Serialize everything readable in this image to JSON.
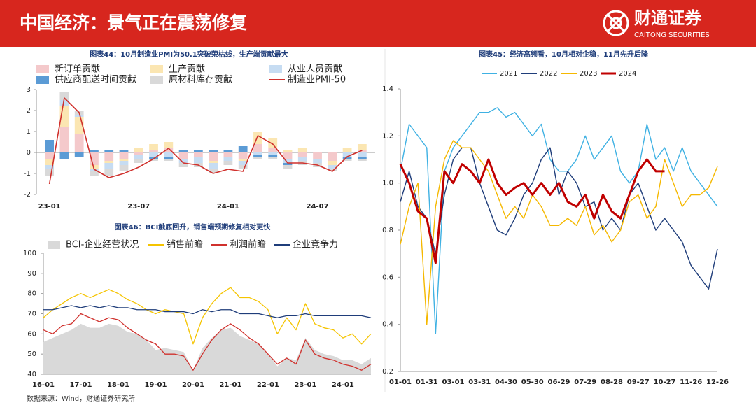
{
  "header": {
    "title": "中国经济：景气正在震荡修复",
    "logo_cn": "财通证券",
    "logo_en": "CAITONG SECURITIES"
  },
  "chart_data": [
    {
      "type": "bar",
      "stacked": true,
      "title": "图表44：10月制造业PMI为50.1突破荣枯线，生产端贡献最大",
      "categories": [
        "23-01",
        null,
        null,
        null,
        null,
        null,
        "23-07",
        null,
        null,
        null,
        null,
        null,
        "24-01",
        null,
        null,
        null,
        null,
        null,
        "24-07",
        null,
        null,
        null
      ],
      "ylim": [
        -2,
        3
      ],
      "yticks": [
        -2,
        -1,
        0,
        1,
        2,
        3
      ],
      "series": [
        {
          "name": "新订单贡献",
          "type": "bar",
          "color": "#f4c9cb",
          "values": [
            -0.3,
            1.2,
            0.9,
            -0.6,
            -0.4,
            -0.3,
            -0.1,
            0.1,
            0.2,
            -0.3,
            -0.2,
            -0.4,
            -0.2,
            -0.3,
            0.4,
            0.2,
            -0.3,
            -0.2,
            -0.3,
            -0.4,
            0.0,
            0.1
          ]
        },
        {
          "name": "生产贡献",
          "type": "bar",
          "color": "#fbe6b2",
          "values": [
            -0.3,
            1.0,
            0.8,
            -0.2,
            -0.1,
            -0.1,
            0.2,
            0.3,
            0.3,
            0.0,
            0.0,
            -0.1,
            0.0,
            -0.1,
            0.6,
            0.5,
            0.1,
            0.2,
            0.0,
            -0.2,
            0.2,
            0.3
          ]
        },
        {
          "name": "从业人员贡献",
          "type": "bar",
          "color": "#c6dcf2",
          "values": [
            -0.2,
            0.3,
            0.1,
            -0.1,
            -0.3,
            -0.2,
            -0.2,
            -0.2,
            -0.2,
            -0.2,
            -0.3,
            -0.3,
            -0.2,
            -0.2,
            -0.1,
            -0.1,
            -0.2,
            -0.2,
            -0.2,
            -0.2,
            -0.2,
            -0.2
          ]
        },
        {
          "name": "供应商配送时间贡献",
          "type": "bar",
          "color": "#5b9bd5",
          "values": [
            0.6,
            -0.3,
            -0.2,
            0.1,
            0.1,
            0.1,
            0.0,
            -0.1,
            -0.1,
            0.1,
            0.1,
            0.1,
            0.1,
            0.3,
            -0.1,
            -0.1,
            -0.1,
            0.0,
            0.0,
            0.0,
            -0.1,
            -0.1
          ]
        },
        {
          "name": "原材料库存贡献",
          "type": "bar",
          "color": "#d9d9d9",
          "values": [
            -0.3,
            0.4,
            0.2,
            -0.2,
            -0.3,
            -0.3,
            -0.2,
            -0.1,
            -0.1,
            -0.2,
            -0.2,
            -0.2,
            -0.2,
            -0.2,
            -0.1,
            -0.1,
            -0.2,
            -0.2,
            -0.2,
            -0.1,
            -0.1,
            -0.1
          ]
        },
        {
          "name": "制造业PMI-50",
          "type": "line",
          "color": "#d0312d",
          "values": [
            -1.5,
            2.6,
            1.9,
            -0.8,
            -1.2,
            -1.0,
            -0.7,
            -0.3,
            0.2,
            -0.5,
            -0.6,
            -1.0,
            -0.8,
            -0.9,
            0.8,
            0.4,
            -0.5,
            -0.5,
            -0.6,
            -0.9,
            -0.2,
            0.1
          ]
        }
      ]
    },
    {
      "type": "line",
      "title": "图表45：经济高频看，10月相对企稳，11月先升后降",
      "categories": [
        "01-01",
        null,
        null,
        "01-31",
        null,
        null,
        "03-01",
        null,
        null,
        "03-31",
        null,
        null,
        "04-30",
        null,
        null,
        "05-30",
        null,
        null,
        "06-29",
        null,
        null,
        "07-29",
        null,
        null,
        "08-28",
        null,
        null,
        "09-27",
        null,
        null,
        "10-27",
        null,
        null,
        "11-26",
        null,
        null,
        "12-26"
      ],
      "ylim": [
        0.2,
        1.4
      ],
      "yticks": [
        0.2,
        0.4,
        0.6,
        0.8,
        {
          "value": 1,
          "label": "1.0"
        },
        1.2,
        1.4
      ],
      "series": [
        {
          "name": "2021",
          "color": "#3fb1e3",
          "values": [
            1.05,
            1.25,
            1.2,
            1.15,
            0.36,
            1.05,
            1.15,
            1.2,
            1.25,
            1.3,
            1.3,
            1.32,
            1.28,
            1.3,
            1.25,
            1.2,
            1.25,
            1.1,
            1.05,
            1.05,
            1.1,
            1.2,
            1.1,
            1.15,
            1.2,
            1.05,
            1.0,
            1.05,
            1.25,
            1.1,
            1.15,
            1.05,
            1.15,
            1.05,
            1.0,
            0.95,
            0.9
          ]
        },
        {
          "name": "2022",
          "color": "#1f3d7a",
          "values": [
            0.92,
            1.05,
            0.9,
            0.85,
            0.7,
            0.95,
            1.1,
            1.15,
            1.15,
            1.0,
            0.9,
            0.8,
            0.78,
            0.85,
            0.95,
            1.0,
            1.1,
            1.15,
            0.95,
            1.05,
            1.0,
            0.9,
            0.92,
            0.8,
            0.85,
            0.8,
            0.95,
            1.0,
            0.9,
            0.8,
            0.85,
            0.8,
            0.75,
            0.65,
            0.6,
            0.55,
            0.72
          ]
        },
        {
          "name": "2023",
          "color": "#f5b800",
          "values": [
            0.74,
            0.9,
            1.0,
            0.4,
            0.9,
            1.1,
            1.18,
            1.15,
            1.15,
            1.1,
            1.05,
            0.95,
            0.85,
            0.9,
            0.85,
            0.95,
            0.9,
            0.82,
            0.82,
            0.85,
            0.82,
            0.9,
            0.78,
            0.82,
            0.75,
            0.8,
            0.92,
            0.95,
            0.85,
            0.9,
            1.1,
            1.0,
            0.9,
            0.95,
            0.95,
            0.98,
            1.07
          ]
        },
        {
          "name": "2024",
          "color": "#c00000",
          "values": [
            1.08,
            1.0,
            0.88,
            0.85,
            0.66,
            1.05,
            1.0,
            1.08,
            1.05,
            1.0,
            1.1,
            1.0,
            0.95,
            0.98,
            1.0,
            0.95,
            1.0,
            0.95,
            1.0,
            0.92,
            0.9,
            0.95,
            0.85,
            0.95,
            0.88,
            0.85,
            0.95,
            1.05,
            1.1,
            1.05,
            1.05,
            null,
            null,
            null,
            null,
            null,
            null
          ]
        }
      ]
    },
    {
      "type": "line",
      "title": "图表46：BCI触底回升，销售端预期修复相对更快",
      "categories": [
        "16-01",
        null,
        null,
        null,
        "17-01",
        null,
        null,
        null,
        "18-01",
        null,
        null,
        null,
        "19-01",
        null,
        null,
        null,
        "20-01",
        null,
        null,
        null,
        "21-01",
        null,
        null,
        null,
        "22-01",
        null,
        null,
        null,
        "23-01",
        null,
        null,
        null,
        "24-01",
        null,
        null,
        null
      ],
      "ylim": [
        40,
        100
      ],
      "yticks": [
        40,
        50,
        60,
        70,
        80,
        90,
        100
      ],
      "series": [
        {
          "name": "BCI-企业经营状况",
          "type": "area",
          "color": "#d9d9d9",
          "values": [
            56,
            58,
            60,
            62,
            65,
            63,
            63,
            65,
            64,
            61,
            60,
            57,
            52,
            53,
            52,
            51,
            42,
            53,
            58,
            62,
            63,
            59,
            57,
            55,
            50,
            44,
            48,
            47,
            58,
            52,
            50,
            49,
            47,
            47,
            45,
            48
          ]
        },
        {
          "name": "销售前瞻",
          "type": "line",
          "color": "#f5c400",
          "values": [
            68,
            72,
            75,
            78,
            80,
            78,
            80,
            82,
            80,
            77,
            75,
            72,
            70,
            72,
            71,
            70,
            55,
            68,
            75,
            80,
            83,
            78,
            78,
            76,
            72,
            60,
            68,
            62,
            75,
            65,
            63,
            62,
            58,
            60,
            55,
            60
          ]
        },
        {
          "name": "利润前瞻",
          "type": "line",
          "color": "#d0312d",
          "values": [
            62,
            60,
            64,
            65,
            70,
            68,
            66,
            68,
            67,
            63,
            60,
            57,
            55,
            50,
            50,
            49,
            42,
            50,
            57,
            62,
            65,
            62,
            58,
            55,
            50,
            45,
            48,
            45,
            57,
            50,
            48,
            47,
            45,
            44,
            42,
            45
          ]
        },
        {
          "name": "企业竞争力",
          "type": "line",
          "color": "#1f3d7a",
          "values": [
            72,
            72,
            73,
            74,
            73,
            74,
            73,
            74,
            73,
            73,
            72,
            72,
            72,
            71,
            71,
            71,
            70,
            72,
            71,
            72,
            72,
            70,
            70,
            70,
            69,
            68,
            69,
            69,
            70,
            69,
            69,
            69,
            69,
            69,
            69,
            68
          ]
        }
      ]
    }
  ],
  "footer": {
    "source": "数据来源：Wind，财通证券研究所"
  }
}
